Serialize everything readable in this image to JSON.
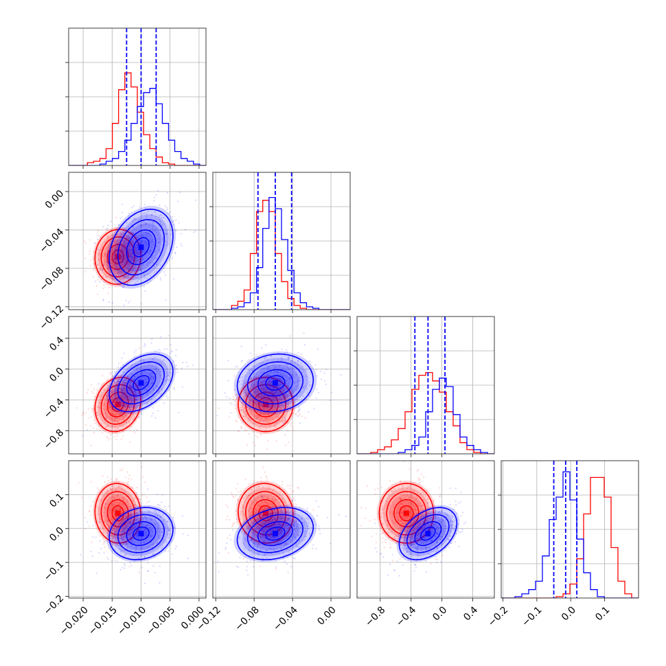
{
  "chart_data": {
    "type": "corner",
    "n_params": 4,
    "grid": true,
    "series": [
      {
        "color": "#ff0000",
        "mean": [
          -0.014,
          -0.068,
          -0.46,
          0.045
        ],
        "std": [
          0.0018,
          0.013,
          0.16,
          0.04
        ],
        "corr": [
          [
            1,
            0.05,
            0.15,
            -0.05
          ],
          [
            0.05,
            1,
            0.0,
            -0.05
          ],
          [
            0.15,
            0.0,
            1,
            0.0
          ],
          [
            -0.05,
            -0.05,
            0.0,
            1
          ]
        ]
      },
      {
        "color": "#0000ff",
        "mean": [
          -0.01,
          -0.058,
          -0.18,
          -0.015
        ],
        "std": [
          0.0025,
          0.018,
          0.17,
          0.035
        ],
        "corr": [
          [
            1,
            0.3,
            0.4,
            0.15
          ],
          [
            0.3,
            1,
            0.1,
            0.25
          ],
          [
            0.4,
            0.1,
            1,
            0.4
          ],
          [
            0.15,
            0.25,
            0.4,
            1
          ]
        ]
      }
    ],
    "quantiles": [
      [
        -0.0125,
        -0.01,
        -0.0074
      ],
      [
        -0.076,
        -0.058,
        -0.041
      ],
      [
        -0.35,
        -0.18,
        0.04
      ],
      [
        -0.05,
        -0.015,
        0.018
      ]
    ],
    "hist_red": [
      [
        0,
        0,
        0,
        2,
        3,
        5,
        12,
        30,
        54,
        66,
        56,
        38,
        22,
        12,
        6,
        2,
        1,
        0,
        0,
        0,
        0,
        0
      ],
      [
        0,
        0,
        0,
        3,
        6,
        14,
        40,
        70,
        78,
        70,
        40,
        20,
        8,
        3,
        1,
        0,
        0,
        0,
        0,
        0,
        0,
        0
      ],
      [
        0,
        0,
        1,
        3,
        5,
        10,
        18,
        30,
        46,
        56,
        58,
        52,
        44,
        30,
        20,
        8,
        3,
        1,
        0,
        0
      ],
      [
        0,
        0,
        0,
        0,
        0,
        0,
        0,
        0,
        1,
        3,
        10,
        28,
        60,
        86,
        86,
        72,
        36,
        12,
        3,
        0
      ]
    ],
    "hist_blue": [
      [
        0,
        0,
        0,
        0,
        0,
        1,
        3,
        5,
        10,
        18,
        30,
        42,
        52,
        55,
        44,
        30,
        18,
        10,
        5,
        3,
        1,
        0
      ],
      [
        0,
        0,
        0,
        1,
        2,
        5,
        12,
        30,
        58,
        80,
        72,
        50,
        28,
        12,
        5,
        2,
        1,
        0,
        0,
        0,
        0,
        0
      ],
      [
        0,
        0,
        0,
        0,
        0,
        0,
        1,
        3,
        6,
        12,
        30,
        46,
        54,
        48,
        28,
        12,
        6,
        3,
        1,
        0
      ],
      [
        0,
        0,
        1,
        3,
        6,
        12,
        30,
        56,
        72,
        90,
        70,
        42,
        18,
        6,
        1,
        0,
        0,
        0,
        0,
        0
      ]
    ],
    "axes": [
      {
        "range": [
          -0.0225,
          0.0012
        ],
        "ticks": [
          -0.02,
          -0.015,
          -0.01,
          -0.005,
          0.0
        ],
        "tick_labels": [
          "−0.020",
          "−0.015",
          "−0.010",
          "−0.005",
          "0.000"
        ]
      },
      {
        "range": [
          -0.123,
          0.02
        ],
        "ticks": [
          -0.12,
          -0.08,
          -0.04,
          0.0
        ],
        "tick_labels": [
          "−0.12",
          "−0.08",
          "−0.04",
          "0.00"
        ]
      },
      {
        "range": [
          -1.1,
          0.68
        ],
        "ticks": [
          -0.8,
          -0.4,
          0.0,
          0.4
        ],
        "tick_labels": [
          "−0.8",
          "−0.4",
          "0.0",
          "0.4"
        ]
      },
      {
        "range": [
          -0.205,
          0.2
        ],
        "ticks": [
          -0.2,
          -0.1,
          0.0,
          0.1
        ],
        "tick_labels": [
          "−0.2",
          "−0.1",
          "0.0",
          "0.1"
        ]
      }
    ]
  }
}
